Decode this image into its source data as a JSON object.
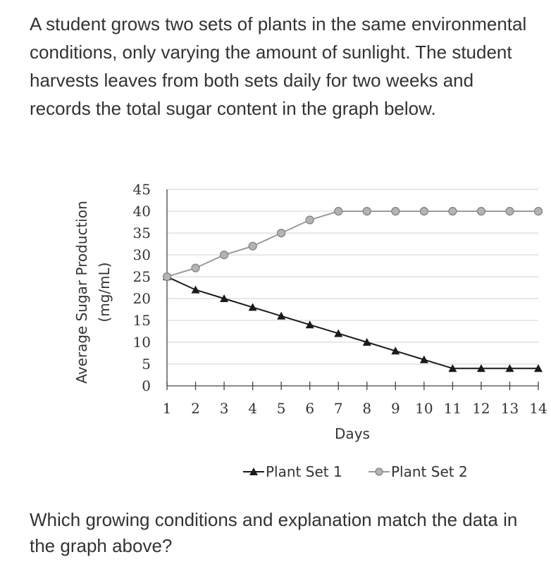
{
  "question": {
    "prompt": "A student grows two sets of plants in the same environmental conditions, only varying the amount of sunlight. The student harvests leaves from both sets daily for two weeks and records the total sugar content in the graph below.",
    "followup": "Which growing conditions and explanation match the data in the graph above?"
  },
  "chart_data": {
    "type": "line",
    "xlabel": "Days",
    "ylabel": "Average Sugar Production",
    "ylabel_unit": "(mg/mL)",
    "x": [
      1,
      2,
      3,
      4,
      5,
      6,
      7,
      8,
      9,
      10,
      11,
      12,
      13,
      14
    ],
    "x_tick_labels": [
      "1",
      "2",
      "3",
      "4",
      "5",
      "6",
      "7",
      "8",
      "9",
      "10",
      "11",
      "12",
      "13",
      "14"
    ],
    "y_ticks": [
      0,
      5,
      10,
      15,
      20,
      25,
      30,
      35,
      40,
      45
    ],
    "ylim": [
      0,
      45
    ],
    "grid": true,
    "legend_position": "bottom",
    "series": [
      {
        "name": "Plant Set 1",
        "marker": "triangle",
        "color": "#1a1a1a",
        "values": [
          25,
          22,
          20,
          18,
          16,
          14,
          12,
          10,
          8,
          6,
          4,
          4,
          4,
          4
        ]
      },
      {
        "name": "Plant Set 2",
        "marker": "circle",
        "color": "#9a9a9a",
        "values": [
          25,
          27,
          30,
          32,
          35,
          38,
          40,
          40,
          40,
          40,
          40,
          40,
          40,
          40
        ]
      }
    ]
  }
}
